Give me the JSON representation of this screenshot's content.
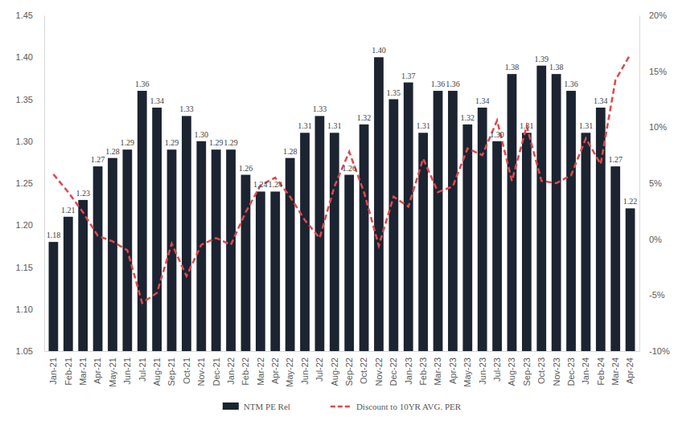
{
  "chart_data": {
    "type": "bar",
    "categories": [
      "Jan-21",
      "Feb-21",
      "Mar-21",
      "Apr-21",
      "May-21",
      "Jun-21",
      "Jul-21",
      "Aug-21",
      "Sep-21",
      "Oct-21",
      "Nov-21",
      "Dec-21",
      "Jan-22",
      "Feb-22",
      "Mar-22",
      "Apr-22",
      "May-22",
      "Jun-22",
      "Jul-22",
      "Aug-22",
      "Sep-22",
      "Oct-22",
      "Nov-22",
      "Dec-22",
      "Jan-23",
      "Feb-23",
      "Mar-23",
      "Apr-23",
      "May-23",
      "Jun-23",
      "Jul-23",
      "Aug-23",
      "Sep-23",
      "Oct-23",
      "Nov-23",
      "Dec-23",
      "Jan-24",
      "Feb-24",
      "Mar-24",
      "Apr-24"
    ],
    "series": [
      {
        "name": "NTM PE Rel",
        "type": "bar",
        "color": "#1c2431",
        "data_labels": true,
        "values": [
          1.18,
          1.21,
          1.23,
          1.27,
          1.28,
          1.29,
          1.36,
          1.34,
          1.29,
          1.33,
          1.3,
          1.29,
          1.29,
          1.26,
          1.24,
          1.24,
          1.28,
          1.31,
          1.33,
          1.31,
          1.26,
          1.32,
          1.4,
          1.35,
          1.37,
          1.31,
          1.36,
          1.36,
          1.32,
          1.34,
          1.3,
          1.38,
          1.31,
          1.39,
          1.38,
          1.36,
          1.31,
          1.34,
          1.27,
          1.22
        ],
        "value_labels": [
          "1.18",
          "1.21",
          "1.23",
          "1.27",
          "1.28",
          "1.29",
          "1.36",
          "1.34",
          "1.29",
          "1.33",
          "1.30",
          "1.29",
          "1.29",
          "1.26",
          "1.24",
          "1.24",
          "1.28",
          "1.31",
          "1.33",
          "1.31",
          "1.26",
          "1.32",
          "1.40",
          "1.35",
          "1.37",
          "1.31",
          "1.36",
          "1.36",
          "1.32",
          "1.34",
          "1.30",
          "1.38",
          "1.31",
          "1.39",
          "1.38",
          "1.36",
          "1.31",
          "1.34",
          "1.27",
          "1.22"
        ]
      },
      {
        "name": "Discount to 10YR AVG. PER",
        "type": "line",
        "color": "#e0484c",
        "line_style": "dashed",
        "axis": "y2",
        "values": [
          5.8,
          4.2,
          2.4,
          0.3,
          -0.2,
          -1.0,
          -5.7,
          -4.8,
          -0.4,
          -3.3,
          -0.5,
          0.1,
          -0.5,
          2.4,
          4.8,
          5.5,
          3.8,
          1.7,
          0.1,
          4.7,
          7.8,
          4.2,
          -0.6,
          3.8,
          2.9,
          7.2,
          4.2,
          4.7,
          8.1,
          7.5,
          10.6,
          5.2,
          10.1,
          5.2,
          5.0,
          5.7,
          9.0,
          6.7,
          14.2,
          16.5
        ]
      }
    ],
    "ylim": [
      1.05,
      1.45
    ],
    "yticks": [
      1.05,
      {
        "value": 1.1,
        "label": "1.10"
      },
      1.15,
      {
        "value": 1.2,
        "label": "1.20"
      },
      1.25,
      {
        "value": 1.3,
        "label": "1.30"
      },
      1.35,
      {
        "value": 1.4,
        "label": "1.40"
      },
      1.45
    ],
    "y2lim": [
      -10,
      20
    ],
    "y2ticks": [
      {
        "value": -10,
        "label": "-10%"
      },
      {
        "value": -5,
        "label": "-5%"
      },
      {
        "value": 0,
        "label": "0%"
      },
      {
        "value": 5,
        "label": "5%"
      },
      {
        "value": 10,
        "label": "10%"
      },
      {
        "value": 15,
        "label": "15%"
      },
      {
        "value": 20,
        "label": "20%"
      }
    ],
    "grid": false,
    "legend": "bottom"
  }
}
